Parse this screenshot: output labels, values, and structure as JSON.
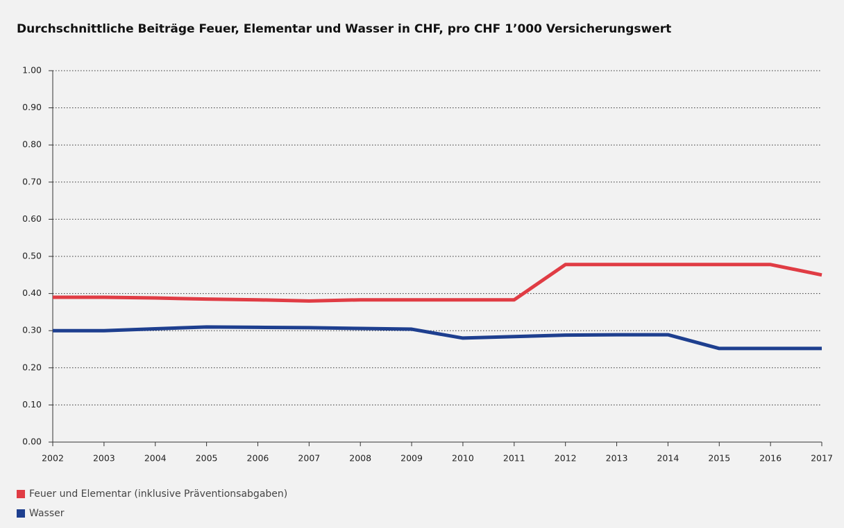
{
  "chart_data": {
    "type": "line",
    "title": "Durchschnittliche Beiträge Feuer, Elementar und Wasser in CHF, pro CHF 1’000 Versicherungswert",
    "x": [
      2002,
      2003,
      2004,
      2005,
      2006,
      2007,
      2008,
      2009,
      2010,
      2011,
      2012,
      2013,
      2014,
      2015,
      2016,
      2017
    ],
    "series": [
      {
        "name": "Feuer und Elementar (inklusive Präventionsabgaben)",
        "color": "#e03c44",
        "values": [
          0.39,
          0.39,
          0.388,
          0.385,
          0.383,
          0.38,
          0.383,
          0.383,
          0.383,
          0.383,
          0.478,
          0.478,
          0.478,
          0.478,
          0.478,
          0.45
        ]
      },
      {
        "name": "Wasser",
        "color": "#1e3f8f",
        "values": [
          0.3,
          0.3,
          0.305,
          0.31,
          0.309,
          0.308,
          0.306,
          0.304,
          0.28,
          0.284,
          0.288,
          0.289,
          0.289,
          0.252,
          0.252,
          0.252
        ]
      }
    ],
    "xlim": [
      2002,
      2017
    ],
    "xticks": [
      2002,
      2003,
      2004,
      2005,
      2006,
      2007,
      2008,
      2009,
      2010,
      2011,
      2012,
      2013,
      2014,
      2015,
      2016,
      2017
    ],
    "ylim": [
      0,
      1
    ],
    "yticks": [
      {
        "value": 0,
        "label": "0.00"
      },
      {
        "value": 0.1,
        "label": "0.10"
      },
      {
        "value": 0.2,
        "label": "0.20"
      },
      {
        "value": 0.3,
        "label": "0.30"
      },
      {
        "value": 0.4,
        "label": "0.40"
      },
      {
        "value": 0.5,
        "label": "0.50"
      },
      {
        "value": 0.6,
        "label": "0.60"
      },
      {
        "value": 0.7,
        "label": "0.70"
      },
      {
        "value": 0.8,
        "label": "0.80"
      },
      {
        "value": 0.9,
        "label": "0.90"
      },
      {
        "value": 1,
        "label": "1.00"
      }
    ],
    "grid": true,
    "legend": "bottom-left"
  }
}
